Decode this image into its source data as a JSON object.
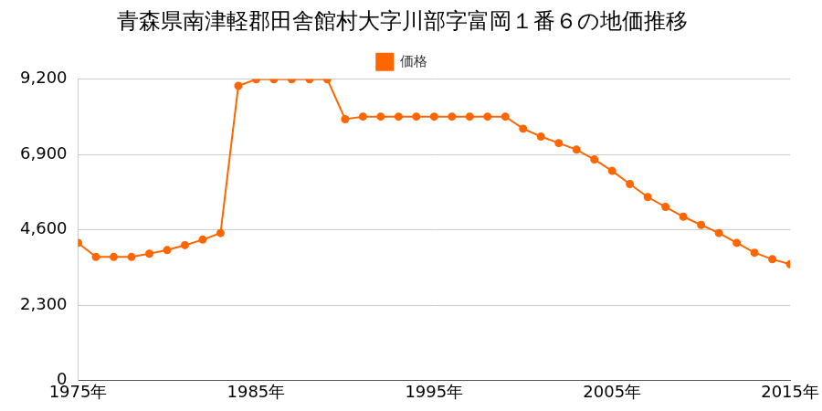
{
  "chart_data": {
    "type": "line",
    "title": "青森県南津軽郡田舎館村大字川部字富岡１番６の地価推移",
    "x": [
      1975,
      1976,
      1977,
      1978,
      1979,
      1980,
      1981,
      1982,
      1983,
      1984,
      1985,
      1986,
      1987,
      1988,
      1989,
      1990,
      1991,
      1992,
      1993,
      1994,
      1995,
      1996,
      1997,
      1998,
      1999,
      2000,
      2001,
      2002,
      2003,
      2004,
      2005,
      2006,
      2007,
      2008,
      2009,
      2010,
      2011,
      2012,
      2013,
      2014,
      2015
    ],
    "series": [
      {
        "name": "価格",
        "color": "#ff6600",
        "marker": "circle",
        "values": [
          4200,
          3770,
          3770,
          3770,
          3870,
          3980,
          4130,
          4300,
          4500,
          9000,
          9200,
          9200,
          9200,
          9200,
          9200,
          7980,
          8060,
          8060,
          8060,
          8060,
          8060,
          8060,
          8060,
          8060,
          8060,
          7690,
          7450,
          7250,
          7050,
          6750,
          6400,
          6000,
          5600,
          5300,
          5000,
          4750,
          4500,
          4200,
          3900,
          3700,
          3550
        ]
      }
    ],
    "xlim": [
      1975,
      2015
    ],
    "xticks": [
      {
        "value": 1975,
        "label": "1975年"
      },
      {
        "value": 1985,
        "label": "1985年"
      },
      {
        "value": 1995,
        "label": "1995年"
      },
      {
        "value": 2005,
        "label": "2005年"
      },
      {
        "value": 2015,
        "label": "2015年"
      }
    ],
    "ylim": [
      0,
      9200
    ],
    "yticks": [
      0,
      {
        "value": 2300,
        "label": "2,300"
      },
      {
        "value": 4600,
        "label": "4,600"
      },
      {
        "value": 6900,
        "label": "6,900"
      },
      {
        "value": 9200,
        "label": "9,200"
      }
    ],
    "grid": true,
    "legend": "top"
  }
}
